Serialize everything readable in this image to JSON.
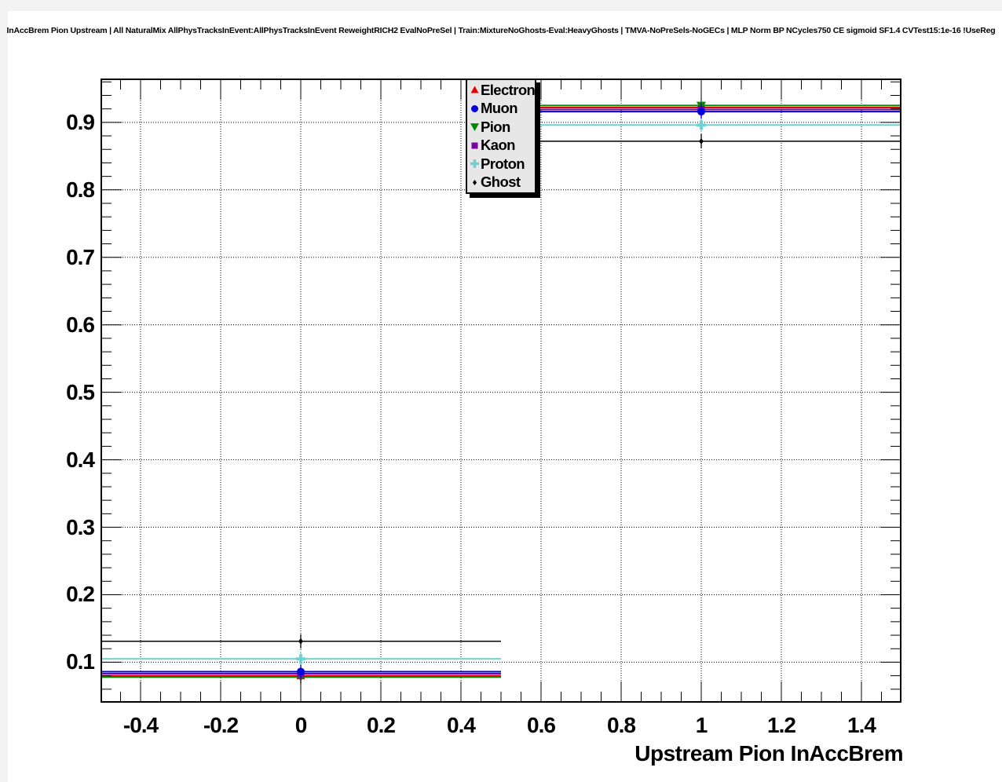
{
  "chart_data": {
    "type": "line",
    "subtype": "binned-efficiency-histogram-with-markers",
    "title": "InAccBrem Pion Upstream | All NaturalMix AllPhysTracksInEvent:AllPhysTracksInEvent ReweightRICH2 EvalNoPreSel | Train:MixtureNoGhosts-Eval:HeavyGhosts | TMVA-NoPreSels-NoGECs | MLP Norm BP NCycles750 CE sigmoid SF1.4 CVTest15:1e-16 !UseReg",
    "xlabel": "Upstream Pion InAccBrem",
    "ylabel": "",
    "xlim": [
      -0.5,
      1.5
    ],
    "ylim": [
      0.04,
      0.965
    ],
    "grid": true,
    "grid_style": "dotted",
    "legend_position": "top-center-inside",
    "bin_edges": [
      -0.5,
      0.5,
      1.5
    ],
    "bin_centers": [
      0,
      1
    ],
    "x_tick_values": [
      -0.4,
      -0.2,
      0,
      0.2,
      0.4,
      0.6,
      0.8,
      1,
      1.2,
      1.4
    ],
    "x_tick_labels": [
      "-0.4",
      "-0.2",
      "0",
      "0.2",
      "0.4",
      "0.6",
      "0.8",
      "1",
      "1.2",
      "1.4"
    ],
    "y_tick_values": [
      0.1,
      0.2,
      0.3,
      0.4,
      0.5,
      0.6,
      0.7,
      0.8,
      0.9
    ],
    "y_tick_labels": [
      "0.1",
      "0.2",
      "0.3",
      "0.4",
      "0.5",
      "0.6",
      "0.7",
      "0.8",
      "0.9"
    ],
    "x_minor_step": 0.05,
    "y_minor_step": 0.02,
    "series": [
      {
        "name": "Electron",
        "color": "#e60000",
        "marker": "triangle-up",
        "values": [
          0.08,
          0.922
        ]
      },
      {
        "name": "Muon",
        "color": "#0000e0",
        "marker": "circle",
        "values": [
          0.086,
          0.916
        ]
      },
      {
        "name": "Pion",
        "color": "#008800",
        "marker": "triangle-down",
        "values": [
          0.078,
          0.925
        ]
      },
      {
        "name": "Kaon",
        "color": "#7d00a5",
        "marker": "square",
        "values": [
          0.083,
          0.919
        ]
      },
      {
        "name": "Proton",
        "color": "#6fd2d2",
        "marker": "cross",
        "values": [
          0.105,
          0.896
        ]
      },
      {
        "name": "Ghost",
        "color": "#000000",
        "marker": "diamond",
        "values": [
          0.131,
          0.872
        ]
      }
    ]
  }
}
